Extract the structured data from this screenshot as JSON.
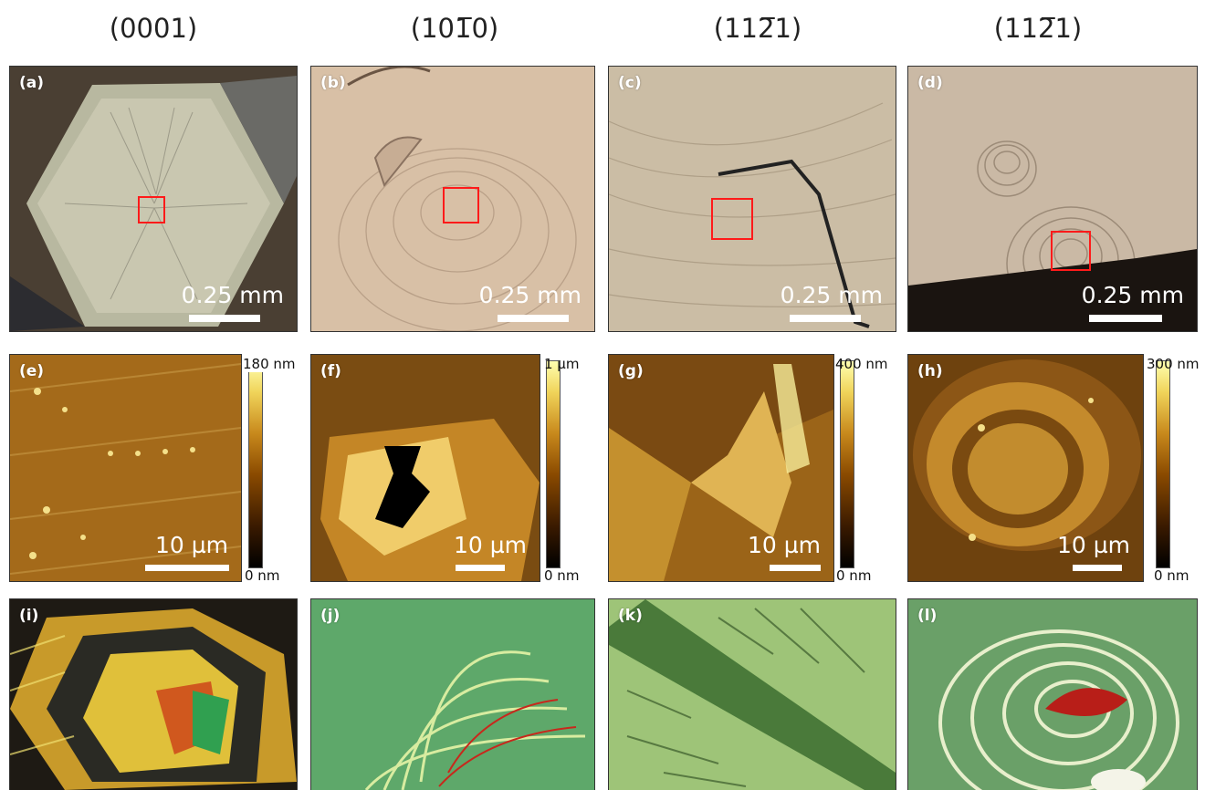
{
  "columns": [
    "(0001)",
    "(10̅1̅0)",
    "(11̅2̅1)",
    "(11̅2̅1)"
  ],
  "columns_display": [
    "(0001)",
    "(101̅0)",
    "(112̅1)",
    "(112̅1)"
  ],
  "optical_panels": [
    {
      "label": "(a)",
      "scale": "0.25 mm"
    },
    {
      "label": "(b)",
      "scale": "0.25 mm"
    },
    {
      "label": "(c)",
      "scale": "0.25 mm"
    },
    {
      "label": "(d)",
      "scale": "0.25 mm"
    }
  ],
  "afm_panels": [
    {
      "label": "(e)",
      "scale": "10 µm",
      "cb_top": "180 nm",
      "cb_bottom": "0 nm"
    },
    {
      "label": "(f)",
      "scale": "10 µm",
      "cb_top": "1 µm",
      "cb_bottom": "0 nm"
    },
    {
      "label": "(g)",
      "scale": "10 µm",
      "cb_top": "400 nm",
      "cb_bottom": "0 nm"
    },
    {
      "label": "(h)",
      "scale": "10 µm",
      "cb_top": "300 nm",
      "cb_bottom": "0 nm"
    }
  ],
  "shaded_panels": [
    {
      "label": "(i)"
    },
    {
      "label": "(j)"
    },
    {
      "label": "(k)"
    },
    {
      "label": "(l)"
    }
  ],
  "colors": {
    "highlight_box": "#ff1a1a"
  }
}
